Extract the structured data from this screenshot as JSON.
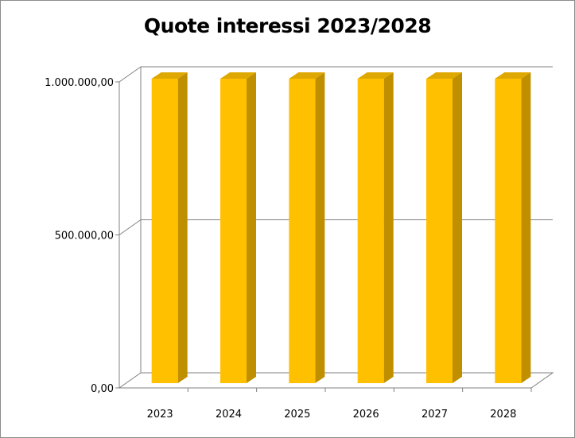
{
  "chart_data": {
    "type": "bar",
    "title": "Quote interessi 2023/2028",
    "xlabel": "",
    "ylabel": "",
    "categories": [
      "2023",
      "2024",
      "2025",
      "2026",
      "2027",
      "2028"
    ],
    "values": [
      1000000,
      1000000,
      1000000,
      1000000,
      1000000,
      1000000
    ],
    "ylim": [
      0,
      1000000
    ],
    "yticks": [
      0,
      500000,
      1000000
    ],
    "ytick_labels": [
      "0,00",
      "500.000,00",
      "1.000.000,00"
    ],
    "grid": true,
    "legend": "none",
    "three_d": true,
    "colors": {
      "bar_front": "#FFC000",
      "bar_side": "#C08F00",
      "bar_top": "#DFA800",
      "axis": "#808080",
      "frame": "#8C8C8C"
    }
  }
}
